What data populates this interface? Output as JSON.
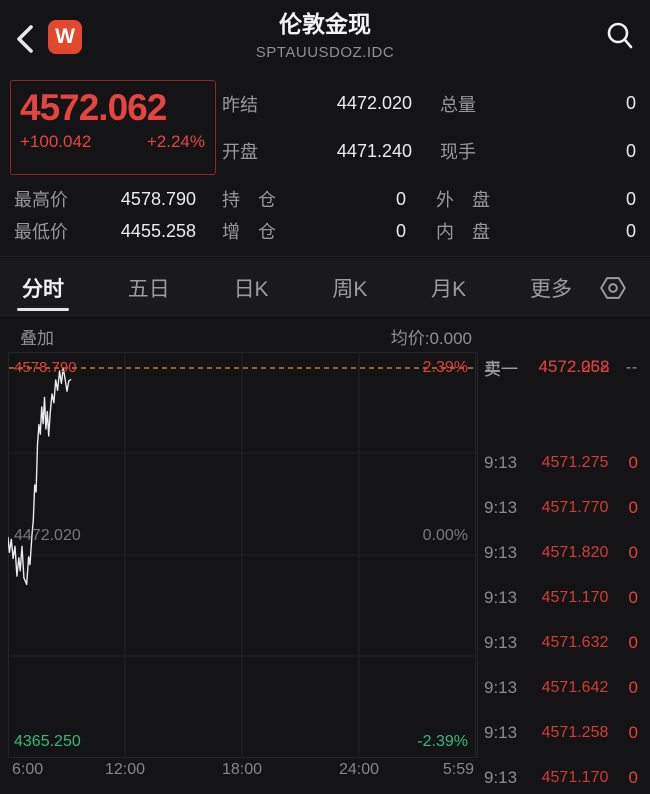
{
  "header": {
    "title": "伦敦金现",
    "subtitle": "SPTAUUSDOZ.IDC",
    "logo_text": "W",
    "logo_color": "#e2492c"
  },
  "quote": {
    "last_price": "4572.062",
    "change": "+100.042",
    "change_pct": "+2.24%",
    "up_color": "#e6453f",
    "fields": [
      {
        "label": "昨结",
        "value": "4472.020",
        "label2": "总量",
        "value2": "0"
      },
      {
        "label": "开盘",
        "value": "4471.240",
        "label2": "现手",
        "value2": "0"
      }
    ],
    "stats": [
      {
        "label": "最高价",
        "value": "4578.790",
        "label2": "持　仓",
        "value2": "0",
        "label3": "外　盘",
        "value3": "0"
      },
      {
        "label": "最低价",
        "value": "4455.258",
        "label2": "增　仓",
        "value2": "0",
        "label3": "内　盘",
        "value3": "0"
      }
    ]
  },
  "tabs": {
    "items": [
      {
        "label": "分时",
        "active": true
      },
      {
        "label": "五日",
        "active": false
      },
      {
        "label": "日K",
        "active": false
      },
      {
        "label": "周K",
        "active": false
      },
      {
        "label": "月K",
        "active": false
      },
      {
        "label": "更多",
        "active": false
      }
    ]
  },
  "chart_header": {
    "overlay_label": "叠加",
    "avg_label": "均价:0.000"
  },
  "chart_data": {
    "type": "line",
    "title": "分时 (intraday price)",
    "y_range": [
      4365.25,
      4578.79
    ],
    "prev_close": 4472.02,
    "high_line": {
      "price": 4578.79,
      "style": "dashed",
      "color": "#bf7b36"
    },
    "labels": {
      "high_left": "4578.790",
      "high_right": "2.39%",
      "mid_left": "4472.020",
      "mid_right": "0.00%",
      "low_left": "4365.250",
      "low_right": "-2.39%"
    },
    "x_ticks": [
      "6:00",
      "12:00",
      "18:00",
      "24:00",
      "5:59"
    ],
    "grid": true,
    "series": [
      {
        "name": "price",
        "color": "#ebebed",
        "points": [
          [
            0.0,
            4482.0
          ],
          [
            0.003,
            4473.5
          ],
          [
            0.007,
            4481.0
          ],
          [
            0.011,
            4470.0
          ],
          [
            0.015,
            4477.0
          ],
          [
            0.019,
            4460.0
          ],
          [
            0.023,
            4470.5
          ],
          [
            0.026,
            4463.0
          ],
          [
            0.03,
            4477.0
          ],
          [
            0.034,
            4459.0
          ],
          [
            0.04,
            4455.3
          ],
          [
            0.044,
            4471.0
          ],
          [
            0.047,
            4466.5
          ],
          [
            0.051,
            4483.0
          ],
          [
            0.054,
            4492.0
          ],
          [
            0.057,
            4512.0
          ],
          [
            0.06,
            4508.0
          ],
          [
            0.063,
            4535.0
          ],
          [
            0.066,
            4546.5
          ],
          [
            0.069,
            4541.0
          ],
          [
            0.072,
            4556.5
          ],
          [
            0.075,
            4547.0
          ],
          [
            0.078,
            4562.0
          ],
          [
            0.081,
            4544.0
          ],
          [
            0.084,
            4554.0
          ],
          [
            0.087,
            4540.0
          ],
          [
            0.09,
            4552.5
          ],
          [
            0.094,
            4564.0
          ],
          [
            0.098,
            4559.0
          ],
          [
            0.102,
            4572.0
          ],
          [
            0.106,
            4566.0
          ],
          [
            0.11,
            4577.0
          ],
          [
            0.114,
            4570.0
          ],
          [
            0.118,
            4578.8
          ],
          [
            0.122,
            4572.5
          ],
          [
            0.126,
            4565.5
          ],
          [
            0.13,
            4571.5
          ],
          [
            0.134,
            4572.1
          ]
        ]
      }
    ]
  },
  "order_book": [
    {
      "label": "卖一",
      "price": "4572.258",
      "vol": "--"
    },
    {
      "label": "买一",
      "price": "4572.062",
      "vol": "--"
    }
  ],
  "trades": [
    {
      "time": "9:13",
      "price": "4571.275",
      "vol": "0"
    },
    {
      "time": "9:13",
      "price": "4571.770",
      "vol": "0"
    },
    {
      "time": "9:13",
      "price": "4571.820",
      "vol": "0"
    },
    {
      "time": "9:13",
      "price": "4571.170",
      "vol": "0"
    },
    {
      "time": "9:13",
      "price": "4571.632",
      "vol": "0"
    },
    {
      "time": "9:13",
      "price": "4571.642",
      "vol": "0"
    },
    {
      "time": "9:13",
      "price": "4571.258",
      "vol": "0"
    },
    {
      "time": "9:13",
      "price": "4571.170",
      "vol": "0"
    }
  ],
  "colors": {
    "background": "#141416",
    "up_red": "#e6453f",
    "down_green": "#36b97a",
    "dashed_high": "#bf7b36",
    "grid": "#242428",
    "label_gray": "#98989c"
  }
}
